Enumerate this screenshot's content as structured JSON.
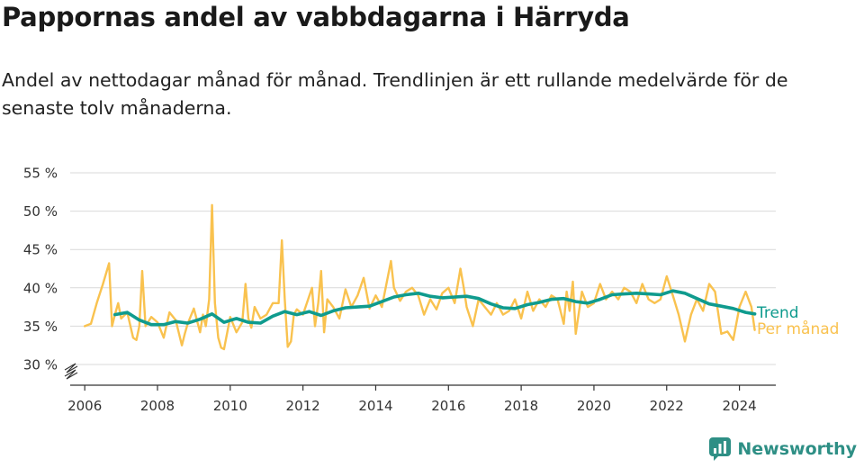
{
  "title": "Pappornas andel av vabbdagarna i Härryda",
  "subtitle": "Andel av nettodagar månad för månad. Trendlinjen är ett rullande medelvärde för de senaste tolv månaderna.",
  "brand": "Newsworthy",
  "colors": {
    "trend": "#0f9b8e",
    "monthly": "#f9c24f",
    "grid": "#d9d9d9",
    "brand": "#2e8f85"
  },
  "chart_data": {
    "type": "line",
    "title": "Pappornas andel av vabbdagarna i Härryda",
    "xlabel": "",
    "ylabel": "",
    "xlim": [
      2005.6,
      2025.0
    ],
    "ylim": [
      30,
      55
    ],
    "y_axis_break": true,
    "grid": "horizontal",
    "legend": "direct labels at line ends, right",
    "x_ticks": [
      "2006",
      "2008",
      "2010",
      "2012",
      "2014",
      "2016",
      "2018",
      "2020",
      "2022",
      "2024"
    ],
    "y_ticks": [
      "30 %",
      "35 %",
      "40 %",
      "45 %",
      "50 %",
      "55 %"
    ],
    "series": [
      {
        "name": "Trend",
        "color": "#0f9b8e",
        "x": [
          2006.83,
          2007.17,
          2007.5,
          2007.83,
          2008.17,
          2008.5,
          2008.83,
          2009.17,
          2009.5,
          2009.83,
          2010.17,
          2010.5,
          2010.83,
          2011.17,
          2011.5,
          2011.83,
          2012.17,
          2012.5,
          2012.83,
          2013.17,
          2013.5,
          2013.83,
          2014.17,
          2014.5,
          2014.83,
          2015.17,
          2015.5,
          2015.83,
          2016.17,
          2016.5,
          2016.83,
          2017.17,
          2017.5,
          2017.83,
          2018.17,
          2018.5,
          2018.83,
          2019.17,
          2019.5,
          2019.83,
          2020.17,
          2020.5,
          2020.83,
          2021.17,
          2021.5,
          2021.83,
          2022.17,
          2022.5,
          2022.83,
          2023.17,
          2023.5,
          2023.83,
          2024.17,
          2024.42
        ],
        "values": [
          36.5,
          36.8,
          35.8,
          35.2,
          35.2,
          35.6,
          35.4,
          35.9,
          36.6,
          35.5,
          36.0,
          35.5,
          35.4,
          36.3,
          36.9,
          36.5,
          36.9,
          36.4,
          37.0,
          37.4,
          37.5,
          37.6,
          38.2,
          38.8,
          39.1,
          39.3,
          38.9,
          38.7,
          38.8,
          38.9,
          38.6,
          37.9,
          37.4,
          37.3,
          37.8,
          38.1,
          38.5,
          38.6,
          38.2,
          38.0,
          38.5,
          39.1,
          39.2,
          39.3,
          39.2,
          39.1,
          39.6,
          39.3,
          38.6,
          37.9,
          37.6,
          37.3,
          36.8,
          36.6
        ]
      },
      {
        "name": "Per månad",
        "color": "#f9c24f",
        "x": [
          2006.0,
          2006.17,
          2006.33,
          2006.5,
          2006.67,
          2006.75,
          2006.83,
          2006.92,
          2007.0,
          2007.17,
          2007.33,
          2007.42,
          2007.5,
          2007.58,
          2007.67,
          2007.83,
          2008.0,
          2008.17,
          2008.33,
          2008.5,
          2008.67,
          2008.75,
          2008.83,
          2009.0,
          2009.17,
          2009.25,
          2009.33,
          2009.42,
          2009.5,
          2009.58,
          2009.67,
          2009.75,
          2009.83,
          2010.0,
          2010.17,
          2010.33,
          2010.42,
          2010.5,
          2010.58,
          2010.67,
          2010.83,
          2011.0,
          2011.17,
          2011.33,
          2011.42,
          2011.5,
          2011.58,
          2011.67,
          2011.75,
          2011.83,
          2012.0,
          2012.25,
          2012.33,
          2012.42,
          2012.5,
          2012.58,
          2012.67,
          2012.83,
          2013.0,
          2013.17,
          2013.33,
          2013.5,
          2013.67,
          2013.83,
          2014.0,
          2014.17,
          2014.42,
          2014.5,
          2014.67,
          2014.83,
          2015.0,
          2015.17,
          2015.33,
          2015.5,
          2015.67,
          2015.83,
          2016.0,
          2016.17,
          2016.33,
          2016.42,
          2016.5,
          2016.67,
          2016.83,
          2017.0,
          2017.17,
          2017.33,
          2017.5,
          2017.67,
          2017.83,
          2018.0,
          2018.17,
          2018.33,
          2018.5,
          2018.67,
          2018.83,
          2019.0,
          2019.17,
          2019.25,
          2019.33,
          2019.42,
          2019.5,
          2019.67,
          2019.83,
          2020.0,
          2020.17,
          2020.33,
          2020.5,
          2020.67,
          2020.83,
          2021.0,
          2021.17,
          2021.33,
          2021.5,
          2021.67,
          2021.83,
          2022.0,
          2022.17,
          2022.33,
          2022.5,
          2022.67,
          2022.83,
          2023.0,
          2023.17,
          2023.33,
          2023.5,
          2023.67,
          2023.83,
          2024.0,
          2024.17,
          2024.33,
          2024.42
        ],
        "values": [
          35.0,
          35.3,
          38.0,
          40.5,
          43.2,
          35.0,
          36.5,
          38.0,
          36.0,
          36.8,
          33.5,
          33.2,
          35.0,
          42.2,
          35.0,
          36.2,
          35.5,
          33.5,
          36.8,
          35.8,
          32.5,
          34.0,
          35.3,
          37.3,
          34.2,
          36.5,
          35.0,
          38.5,
          50.8,
          38.0,
          33.5,
          32.2,
          32.0,
          36.2,
          34.2,
          35.5,
          40.5,
          36.0,
          34.8,
          37.5,
          36.0,
          36.5,
          38.0,
          38.0,
          46.2,
          38.5,
          32.3,
          33.0,
          36.5,
          37.2,
          36.5,
          40.0,
          35.0,
          38.0,
          42.2,
          34.2,
          38.5,
          37.5,
          36.0,
          39.8,
          37.5,
          39.0,
          41.3,
          37.3,
          39.0,
          37.5,
          43.5,
          40.0,
          38.3,
          39.5,
          40.0,
          39.0,
          36.5,
          38.5,
          37.2,
          39.3,
          40.0,
          38.0,
          42.5,
          40.0,
          37.5,
          35.0,
          38.5,
          37.5,
          36.5,
          38.0,
          36.5,
          37.0,
          38.5,
          36.0,
          39.5,
          37.0,
          38.5,
          37.5,
          39.0,
          38.5,
          35.3,
          39.5,
          37.0,
          40.8,
          34.0,
          39.5,
          37.5,
          38.0,
          40.5,
          38.5,
          39.5,
          38.5,
          40.0,
          39.5,
          38.0,
          40.5,
          38.5,
          38.0,
          38.5,
          41.5,
          39.0,
          36.5,
          33.0,
          36.5,
          38.5,
          37.0,
          40.5,
          39.5,
          34.0,
          34.3,
          33.2,
          37.5,
          39.5,
          37.5,
          34.5
        ]
      }
    ]
  }
}
